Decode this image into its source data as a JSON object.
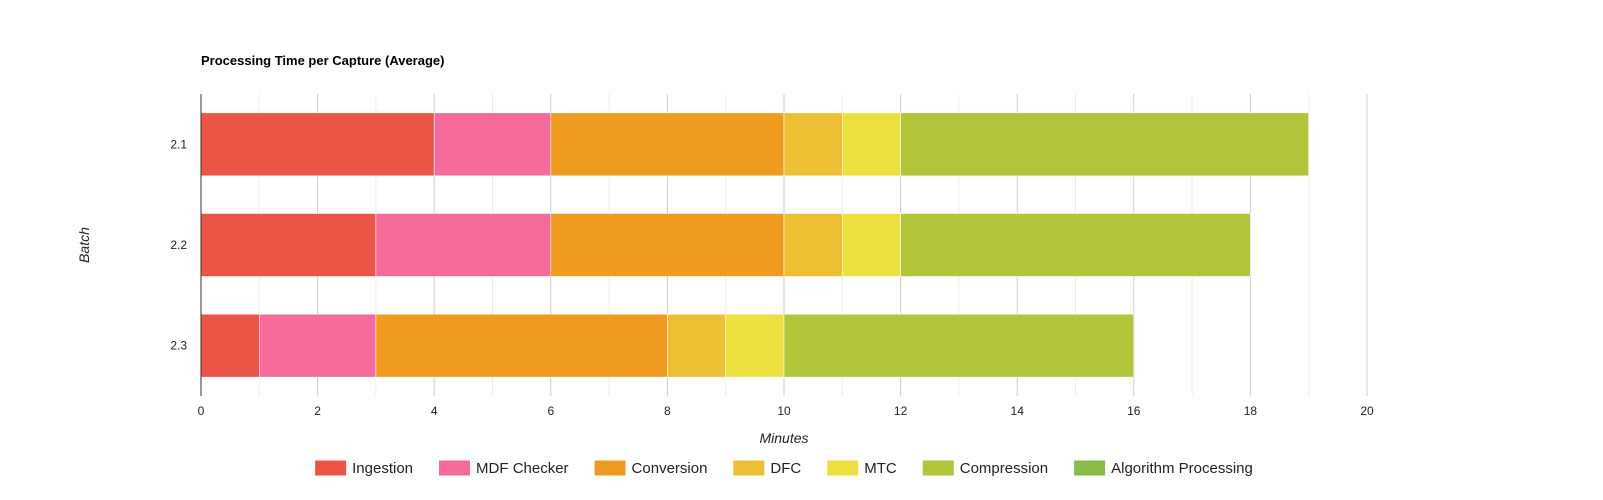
{
  "chart_data": {
    "type": "bar",
    "orientation": "horizontal",
    "stacked": true,
    "title": "Processing Time per Capture (Average)",
    "xlabel": "Minutes",
    "ylabel": "Batch",
    "xlim": [
      0,
      20
    ],
    "xticks": [
      0,
      2,
      4,
      6,
      8,
      10,
      12,
      14,
      16,
      18,
      20
    ],
    "xticks_labels": [
      "0",
      "2",
      "4",
      "6",
      "8",
      "10",
      "12",
      "14",
      "16",
      "18",
      "20"
    ],
    "grid": true,
    "legend_position": "bottom",
    "categories": [
      "2.1",
      "2.2",
      "2.3"
    ],
    "series": [
      {
        "name": "Ingestion",
        "color": "#EC5546",
        "values": [
          4,
          3,
          1
        ]
      },
      {
        "name": "MDF Checker",
        "color": "#F46A9B",
        "values": [
          2,
          3,
          2
        ]
      },
      {
        "name": "Conversion",
        "color": "#EF9B20",
        "values": [
          4,
          4,
          5
        ]
      },
      {
        "name": "DFC",
        "color": "#EDBF33",
        "values": [
          1,
          1,
          1
        ]
      },
      {
        "name": "MTC",
        "color": "#EDE03E",
        "values": [
          1,
          1,
          1
        ]
      },
      {
        "name": "Compression",
        "color": "#B1C43A",
        "values": [
          7,
          6,
          6
        ]
      },
      {
        "name": "Algorithm Processing",
        "color": "#87BC45",
        "values": [
          0,
          0,
          0
        ]
      }
    ]
  }
}
